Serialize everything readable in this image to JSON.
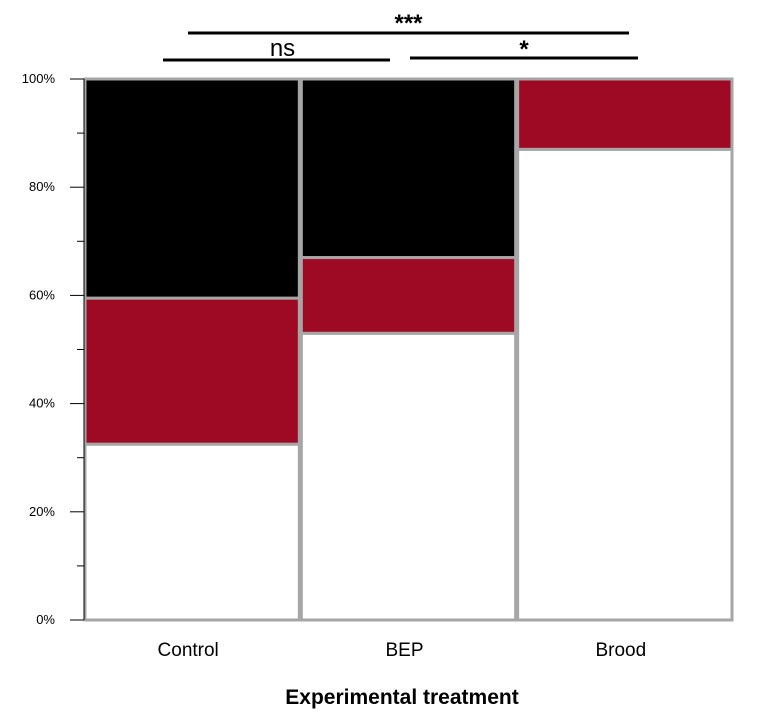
{
  "chart_data": {
    "type": "bar",
    "stacked": true,
    "normalized": true,
    "categories": [
      "Control",
      "BEP",
      "Brood"
    ],
    "series": [
      {
        "values": [
          32.5,
          53,
          87
        ],
        "color": "#ffffff"
      },
      {
        "values": [
          27,
          14,
          13
        ],
        "color": "#9e0a23"
      },
      {
        "values": [
          40.5,
          33,
          0
        ],
        "color": "#000000"
      }
    ],
    "title": "",
    "xlabel": "Experimental treatment",
    "ylabel": "",
    "ylim": [
      0,
      100
    ],
    "y_ticks": [
      "0%",
      "20%",
      "40%",
      "60%",
      "80%",
      "100%"
    ],
    "bar_outline_color": "#a6a6a6",
    "grid": false,
    "legend": "none",
    "significance": [
      {
        "from": "Control",
        "to": "BEP",
        "label": "ns"
      },
      {
        "from": "BEP",
        "to": "Brood",
        "label": "*"
      },
      {
        "from": "Control",
        "to": "Brood",
        "label": "***"
      }
    ]
  }
}
